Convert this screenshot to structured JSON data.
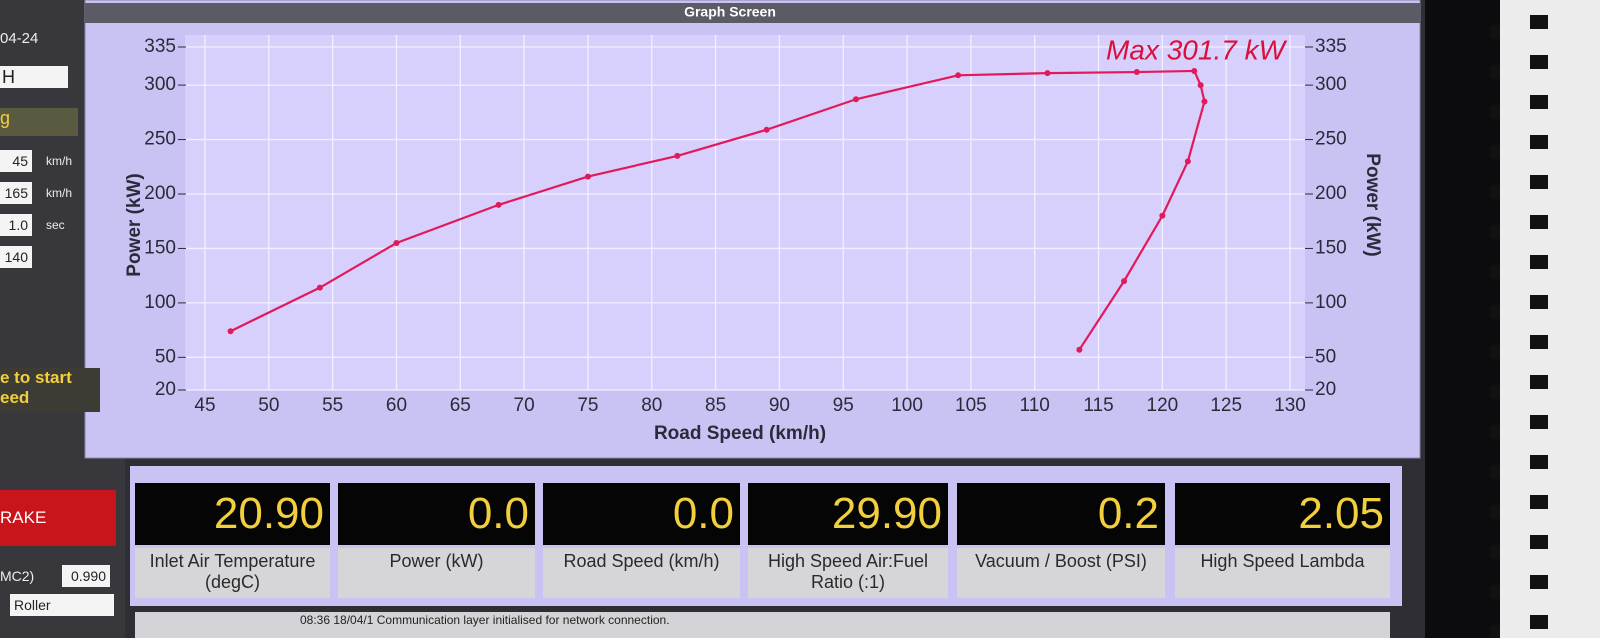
{
  "header": {
    "title": "Graph Screen"
  },
  "left_panel": {
    "date": "04-24",
    "dropdown": "H",
    "label": "g",
    "fields": [
      {
        "value": "45",
        "unit": "km/h"
      },
      {
        "value": "165",
        "unit": "km/h"
      },
      {
        "value": "1.0",
        "unit": "sec"
      },
      {
        "value": "140"
      }
    ],
    "prompt": [
      "e to start",
      "eed"
    ],
    "button": "RAKE",
    "mc_label": "MC2)",
    "mc_value": "0.990",
    "roller": "Roller"
  },
  "chart_data": {
    "type": "line",
    "annotation": "Max 301.7 kW",
    "x_label": "Road Speed (km/h)",
    "y_label": "Power (kW)",
    "y2_label": "Power (kW)",
    "x": [
      47,
      54,
      60,
      68,
      75,
      82,
      89,
      96,
      104,
      111,
      118,
      122.5,
      123,
      123.3,
      122,
      120,
      117,
      113.5
    ],
    "series": [
      {
        "color": "#e2195a",
        "values": [
          74,
          114,
          155,
          190,
          216,
          235,
          259,
          287,
          309,
          311,
          312,
          313,
          300,
          285,
          230,
          180,
          120,
          57
        ]
      }
    ],
    "xlim": [
      45,
      130
    ],
    "xticks": [
      45,
      50,
      55,
      60,
      65,
      70,
      75,
      80,
      85,
      90,
      95,
      100,
      105,
      110,
      115,
      120,
      125,
      130
    ],
    "ylim": [
      20,
      335
    ],
    "yticks": [
      20,
      50,
      100,
      150,
      200,
      250,
      300,
      335
    ],
    "y2lim": [
      20,
      335
    ],
    "y2ticks": [
      20,
      50,
      100,
      150,
      200,
      250,
      300,
      335
    ],
    "grid": true
  },
  "gauges": [
    {
      "value": "20.90",
      "label": "Inlet Air Temperature (degC)"
    },
    {
      "value": "0.0",
      "label": "Power (kW)"
    },
    {
      "value": "0.0",
      "label": "Road Speed (km/h)"
    },
    {
      "value": "29.90",
      "label": "High Speed Air:Fuel Ratio (:1)"
    },
    {
      "value": "0.2",
      "label": "Vacuum / Boost (PSI)"
    },
    {
      "value": "2.05",
      "label": "High Speed Lambda"
    }
  ],
  "status": "08:36 18/04/1 Communication layer initialised for network connection."
}
